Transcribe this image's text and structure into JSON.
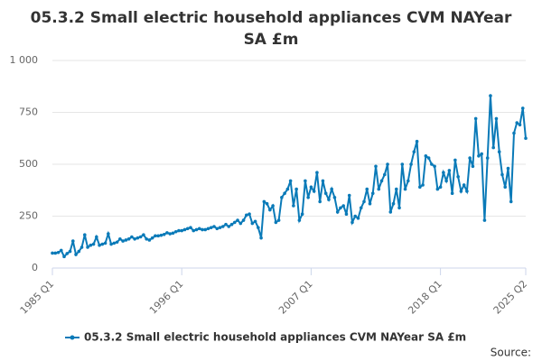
{
  "chart_data": {
    "type": "line",
    "title": "05.3.2 Small electric household appliances CVM NAYear SA £m",
    "source": "Source:",
    "categories": [
      "1985 Q1",
      null,
      null,
      null,
      null,
      null,
      null,
      null,
      null,
      null,
      null,
      null,
      null,
      null,
      null,
      null,
      null,
      null,
      null,
      null,
      null,
      null,
      null,
      null,
      null,
      null,
      null,
      null,
      null,
      null,
      null,
      null,
      null,
      null,
      null,
      null,
      null,
      null,
      null,
      null,
      null,
      null,
      null,
      null,
      "1996 Q1",
      null,
      null,
      null,
      null,
      null,
      null,
      null,
      null,
      null,
      null,
      null,
      null,
      null,
      null,
      null,
      null,
      null,
      null,
      null,
      null,
      null,
      null,
      null,
      null,
      null,
      null,
      null,
      null,
      null,
      null,
      null,
      null,
      null,
      null,
      null,
      null,
      null,
      null,
      null,
      null,
      null,
      null,
      null,
      "2007 Q1",
      null,
      null,
      null,
      null,
      null,
      null,
      null,
      null,
      null,
      null,
      null,
      null,
      null,
      null,
      null,
      null,
      null,
      null,
      null,
      null,
      null,
      null,
      null,
      null,
      null,
      null,
      null,
      null,
      null,
      null,
      null,
      null,
      null,
      null,
      null,
      null,
      null,
      null,
      null,
      null,
      null,
      null,
      null,
      "2018 Q1",
      null,
      null,
      null,
      null,
      null,
      null,
      null,
      null,
      null,
      null,
      null,
      null,
      null,
      null,
      null,
      null,
      null,
      null,
      null,
      null,
      null,
      null,
      null,
      null,
      null,
      null,
      null,
      null,
      "2025 Q2"
    ],
    "series": [
      {
        "name": "05.3.2 Small electric household appliances CVM NAYear SA £m",
        "color": "#0a7ab8",
        "values": [
          72,
          72,
          75,
          85,
          55,
          70,
          80,
          130,
          65,
          80,
          100,
          160,
          100,
          110,
          115,
          150,
          110,
          115,
          120,
          165,
          115,
          120,
          125,
          140,
          130,
          135,
          140,
          150,
          140,
          145,
          150,
          160,
          140,
          135,
          145,
          155,
          155,
          158,
          162,
          170,
          165,
          168,
          175,
          180,
          180,
          185,
          190,
          195,
          180,
          185,
          190,
          185,
          185,
          190,
          195,
          200,
          190,
          195,
          200,
          210,
          200,
          210,
          220,
          230,
          215,
          230,
          255,
          260,
          215,
          225,
          195,
          145,
          320,
          310,
          280,
          300,
          220,
          230,
          340,
          360,
          380,
          420,
          300,
          380,
          230,
          260,
          420,
          340,
          390,
          370,
          460,
          320,
          420,
          360,
          330,
          380,
          340,
          270,
          290,
          300,
          260,
          350,
          220,
          250,
          240,
          290,
          320,
          380,
          310,
          360,
          490,
          380,
          420,
          450,
          500,
          270,
          310,
          380,
          290,
          500,
          380,
          420,
          500,
          560,
          610,
          390,
          400,
          540,
          530,
          500,
          490,
          380,
          390,
          460,
          420,
          470,
          360,
          520,
          440,
          370,
          400,
          370,
          530,
          490,
          720,
          540,
          550,
          230,
          530,
          830,
          580,
          720,
          560,
          450,
          390,
          480,
          320,
          650,
          700,
          690,
          770,
          625
        ]
      }
    ],
    "ylim": [
      0,
      1000
    ],
    "yticks": [
      0,
      250,
      500,
      750,
      {
        "value": 1000,
        "label": "1 000"
      }
    ],
    "grid": true
  }
}
